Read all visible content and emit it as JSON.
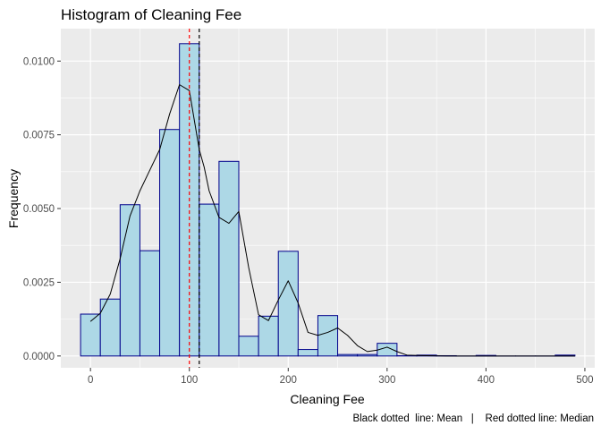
{
  "chart_data": {
    "type": "bar",
    "title": "Histogram of Cleaning Fee",
    "xlabel": "Cleaning Fee",
    "ylabel": "Frequency",
    "caption": "Black dotted  line: Mean   |    Red dotted line: Median",
    "xlim": [
      -30,
      510
    ],
    "ylim": [
      -0.0004,
      0.0111
    ],
    "x_ticks": [
      0,
      100,
      200,
      300,
      400,
      500
    ],
    "y_ticks": [
      0.0,
      0.0025,
      0.005,
      0.0075,
      0.01
    ],
    "x_tick_labels": [
      "0",
      "100",
      "200",
      "300",
      "400",
      "500"
    ],
    "y_tick_labels": [
      "0.0000",
      "0.0025",
      "0.0050",
      "0.0075",
      "0.0100"
    ],
    "bin_width": 20,
    "bin_centers": [
      0,
      20,
      40,
      60,
      80,
      100,
      120,
      140,
      160,
      180,
      200,
      220,
      240,
      260,
      280,
      300,
      320,
      340,
      360,
      380,
      400,
      420,
      440,
      460,
      480
    ],
    "values": [
      0.00142,
      0.00193,
      0.00513,
      0.00357,
      0.00768,
      0.01059,
      0.00515,
      0.0066,
      0.00067,
      0.00135,
      0.00355,
      0.00022,
      0.00137,
      5e-05,
      5e-05,
      0.00043,
      1e-05,
      3e-05,
      1e-05,
      0.0,
      2e-05,
      0.0,
      0.0,
      0.0,
      3e-05
    ],
    "mean": 110,
    "median": 100,
    "density_curve": {
      "x": [
        0,
        10,
        20,
        30,
        40,
        50,
        60,
        70,
        80,
        90,
        100,
        105,
        110,
        115,
        120,
        130,
        140,
        150,
        160,
        170,
        180,
        190,
        200,
        210,
        220,
        230,
        240,
        250,
        260,
        270,
        280,
        290,
        300,
        310,
        320,
        340,
        360,
        380,
        400,
        450,
        490
      ],
      "y": [
        0.00117,
        0.00145,
        0.0021,
        0.0033,
        0.00475,
        0.0056,
        0.0063,
        0.007,
        0.0082,
        0.0092,
        0.009,
        0.008,
        0.007,
        0.0064,
        0.0056,
        0.0047,
        0.0045,
        0.0049,
        0.003,
        0.0014,
        0.0012,
        0.0019,
        0.00255,
        0.0018,
        0.0008,
        0.0007,
        0.0008,
        0.00095,
        0.0007,
        0.00035,
        0.00015,
        0.0002,
        0.0003,
        0.00015,
        3e-05,
        1e-05,
        0.0,
        0.0,
        0.0,
        0.0,
        0.0
      ]
    }
  }
}
